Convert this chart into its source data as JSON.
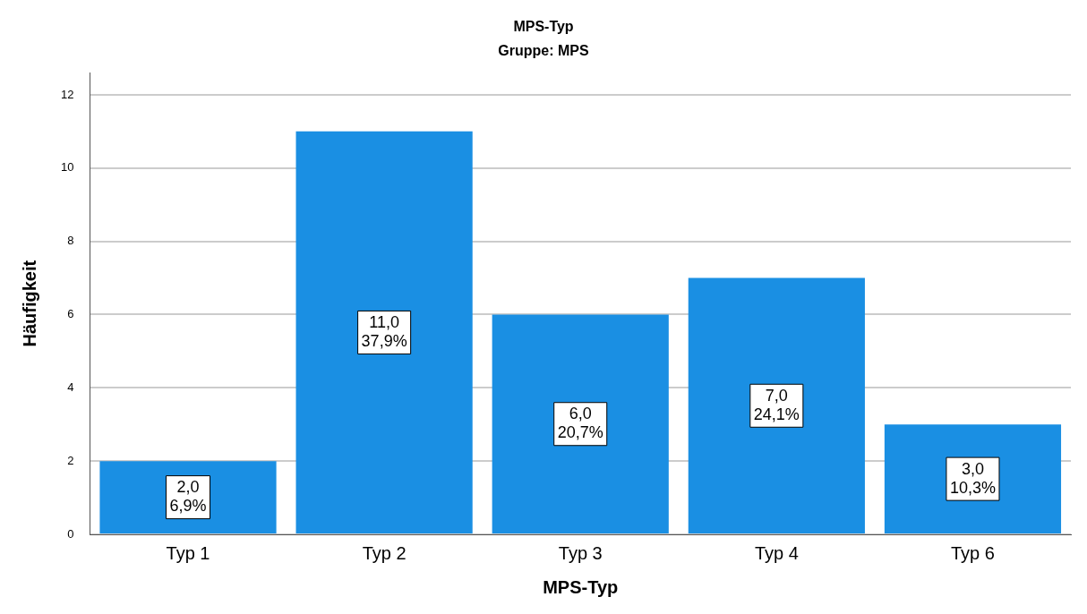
{
  "chart_data": {
    "type": "bar",
    "title": "MPS-Typ",
    "subtitle": "Gruppe: MPS",
    "xlabel": "MPS-Typ",
    "ylabel": "Häufigkeit",
    "categories": [
      "Typ 1",
      "Typ 2",
      "Typ 3",
      "Typ 4",
      "Typ 6"
    ],
    "values": [
      2,
      11,
      6,
      7,
      3
    ],
    "value_labels": [
      "2,0\n6,9%",
      "11,0\n37,9%",
      "6,0\n20,7%",
      "7,0\n24,1%",
      "3,0\n10,3%"
    ],
    "color": "#1a8fe3",
    "ylim": [
      0,
      12.6
    ],
    "yticks": [
      0,
      2,
      4,
      6,
      8,
      10,
      12
    ],
    "grid": "y",
    "legend": false
  }
}
